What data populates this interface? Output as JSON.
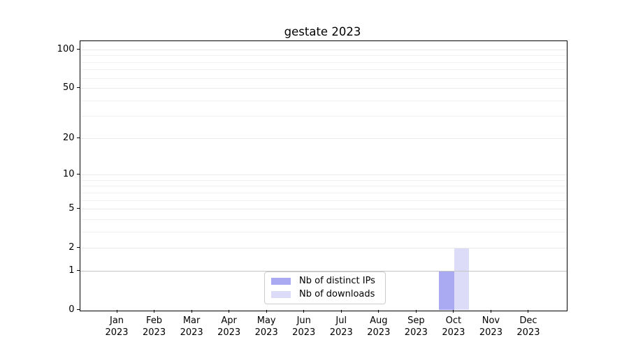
{
  "chart_data": {
    "type": "bar",
    "title": "gestate 2023",
    "categories": [
      "Jan",
      "Feb",
      "Mar",
      "Apr",
      "May",
      "Jun",
      "Jul",
      "Aug",
      "Sep",
      "Oct",
      "Nov",
      "Dec"
    ],
    "category_year": "2023",
    "series": [
      {
        "name": "Nb of distinct IPs",
        "color": "#aaaaf2",
        "values": [
          0,
          0,
          0,
          0,
          0,
          0,
          0,
          0,
          0,
          1,
          0,
          0
        ]
      },
      {
        "name": "Nb of downloads",
        "color": "#dcdcf8",
        "values": [
          0,
          0,
          0,
          0,
          0,
          0,
          0,
          0,
          0,
          2,
          0,
          0
        ]
      }
    ],
    "xlabel": "",
    "ylabel": "",
    "y_axis": {
      "scale": "log1p",
      "major_ticks": [
        0,
        1,
        2,
        5,
        10,
        20,
        50,
        100
      ],
      "minor_gridlines": [
        3,
        4,
        6,
        7,
        8,
        9,
        30,
        40,
        60,
        70,
        80,
        90
      ],
      "ylim": [
        0,
        117.2
      ]
    },
    "legend_position": "lower center",
    "grid": true
  },
  "colors": {
    "grid_major": "#e9e9e9",
    "grid_minor": "#f2f2f2",
    "grid_baseline_one": "#c5c5c5",
    "spine": "#000000",
    "legend_border": "#cccccc",
    "text": "#000000"
  }
}
